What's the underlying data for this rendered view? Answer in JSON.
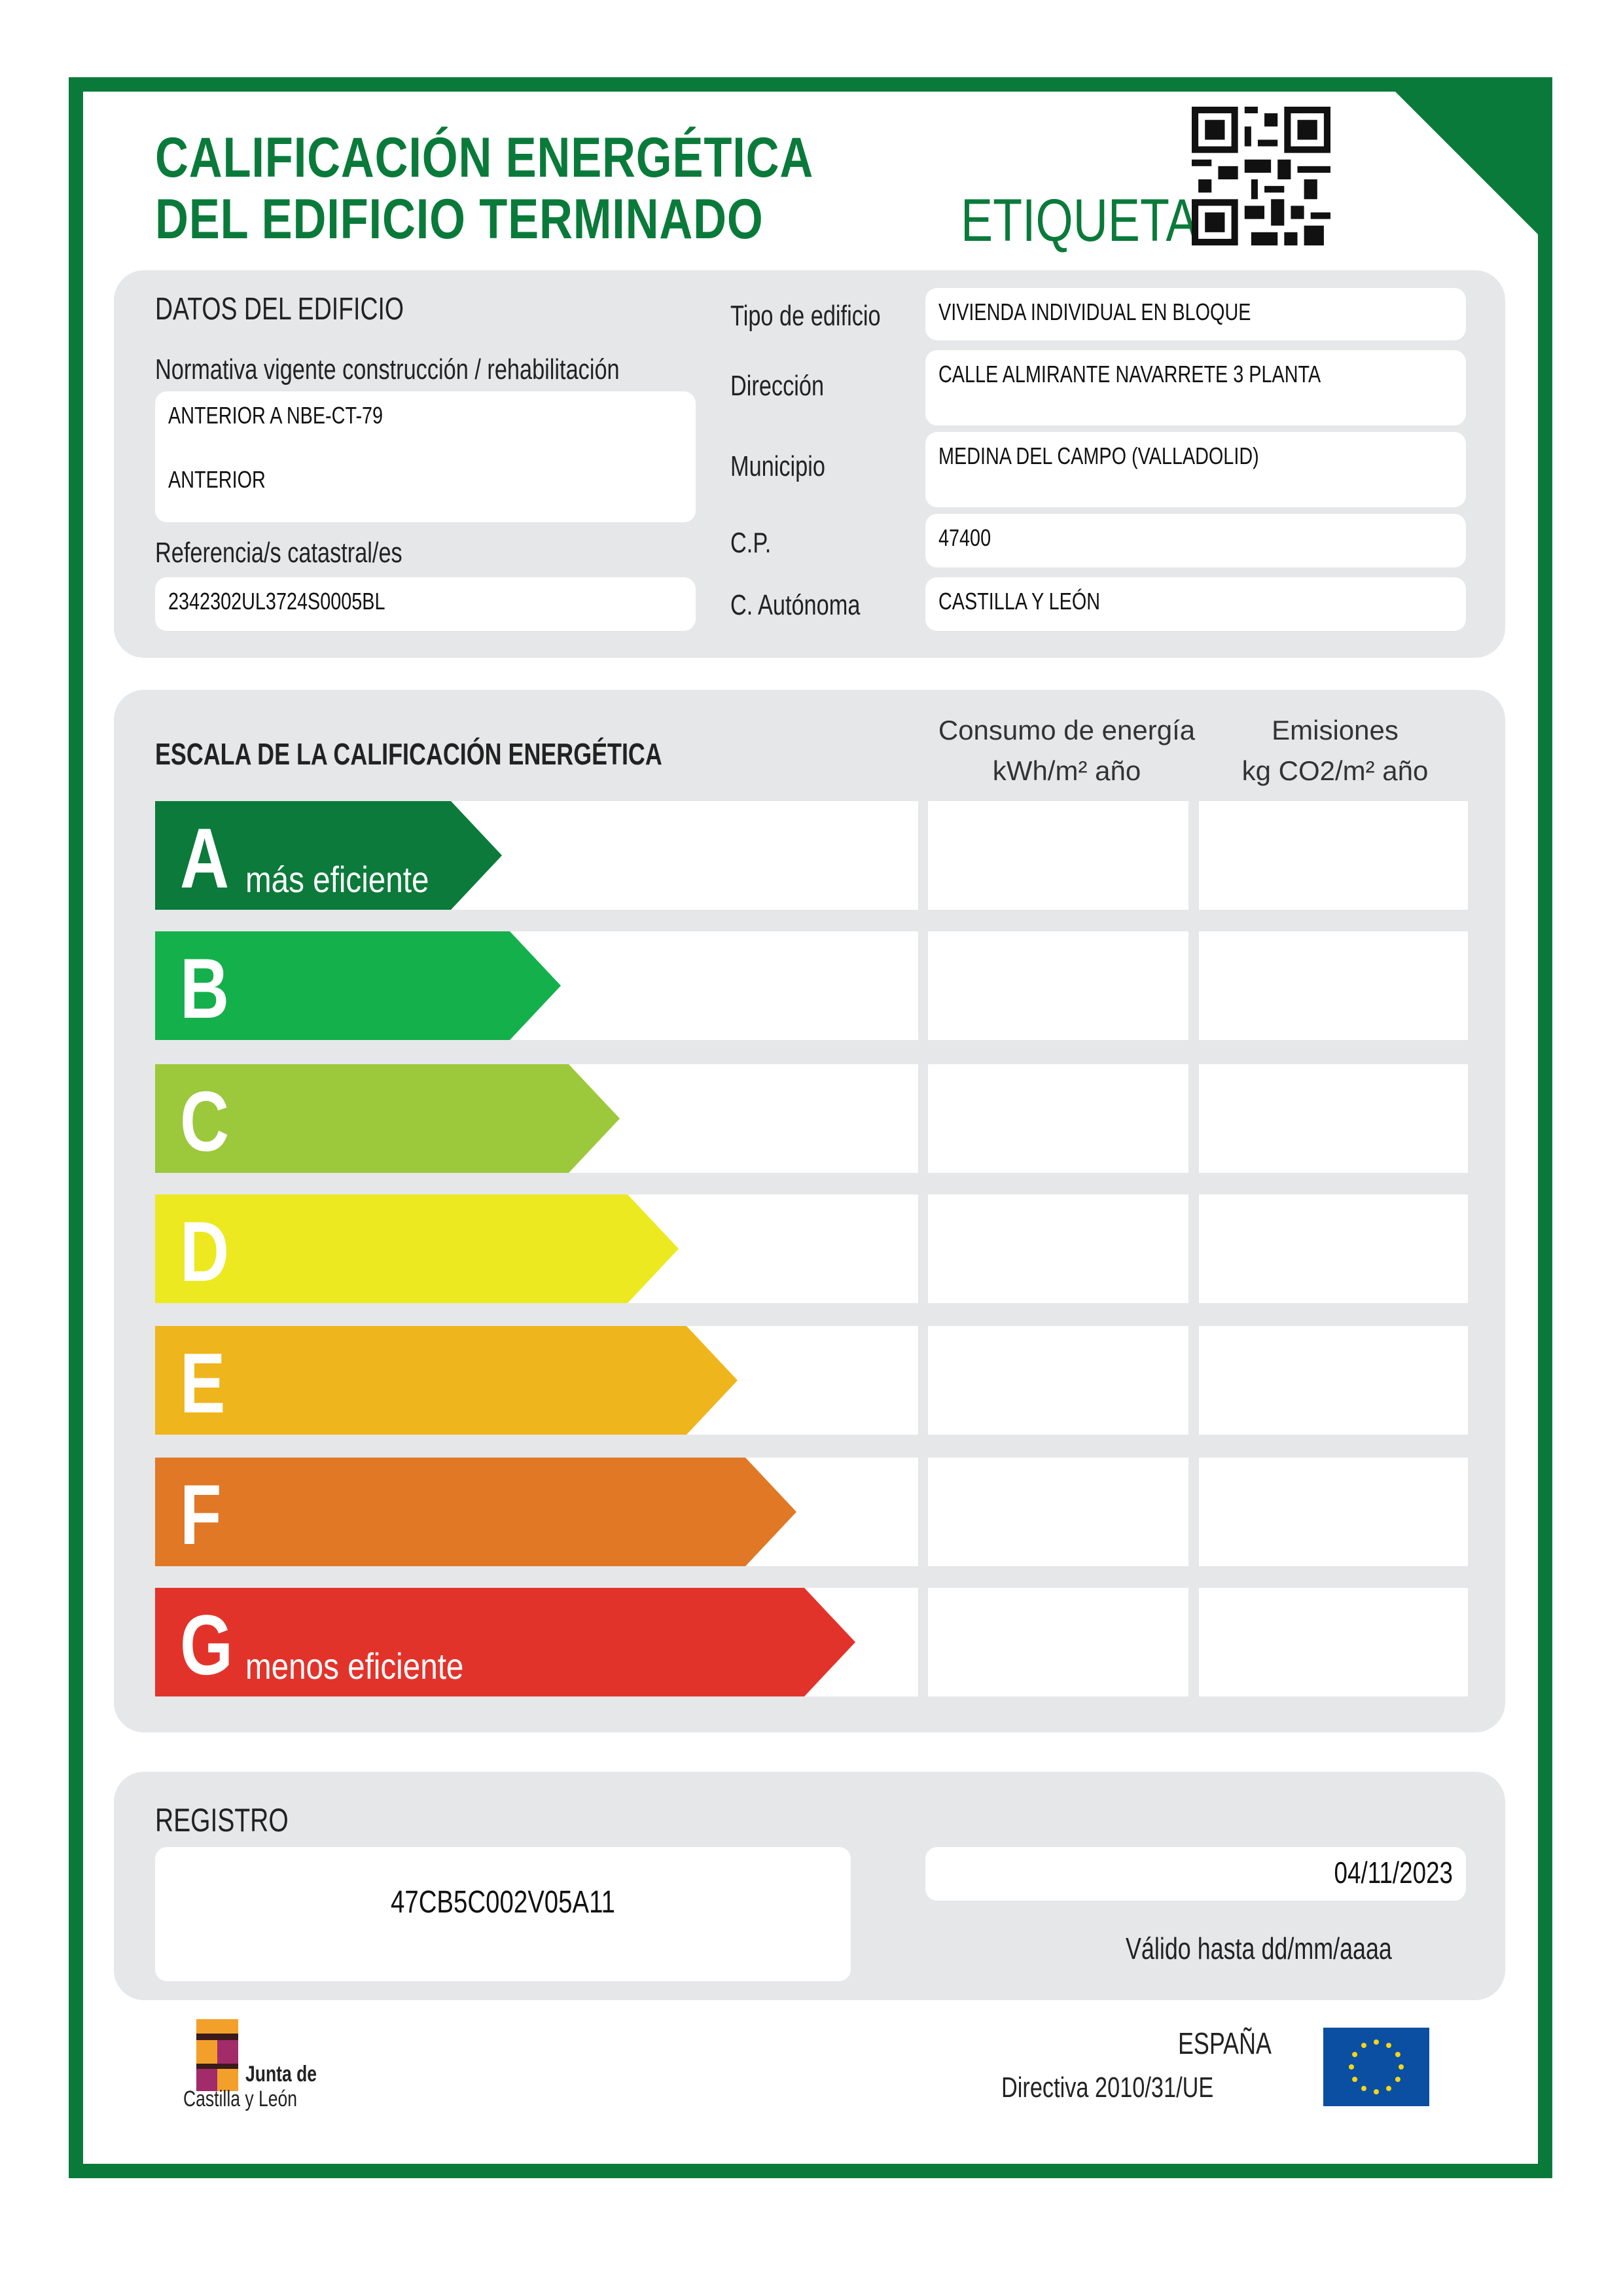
{
  "header": {
    "title_line1": "CALIFICACIÓN ENERGÉTICA",
    "title_line2": "DEL EDIFICIO TERMINADO",
    "etiqueta": "ETIQUETA",
    "qr_icon": "qr-code-icon"
  },
  "datos": {
    "section_title": "DATOS DEL EDIFICIO",
    "normativa_label": "Normativa vigente construcción / rehabilitación",
    "normativa_value1": "ANTERIOR A NBE-CT-79",
    "normativa_value2": "ANTERIOR",
    "referencia_label": "Referencia/s catastral/es",
    "referencia_value": "2342302UL3724S0005BL",
    "tipo_label": "Tipo de edificio",
    "tipo_value": "VIVIENDA INDIVIDUAL EN BLOQUE",
    "direccion_label": "Dirección",
    "direccion_value": "CALLE ALMIRANTE NAVARRETE 3 PLANTA",
    "municipio_label": "Municipio",
    "municipio_value": "MEDINA DEL CAMPO (VALLADOLID)",
    "cp_label": "C.P.",
    "cp_value": "47400",
    "ca_label": "C. Autónoma",
    "ca_value": "CASTILLA Y LEÓN"
  },
  "escala": {
    "section_title": "ESCALA DE LA CALIFICACIÓN ENERGÉTICA",
    "col1_line1": "Consumo de energía",
    "col1_line2": "kWh/m² año",
    "col2_line1": "Emisiones",
    "col2_line2": "kg CO2/m² año",
    "classes": [
      {
        "letter": "A",
        "sub": "más eficiente",
        "color": "#0b7a3a"
      },
      {
        "letter": "B",
        "sub": "",
        "color": "#14b04b"
      },
      {
        "letter": "C",
        "sub": "",
        "color": "#9cc83c"
      },
      {
        "letter": "D",
        "sub": "",
        "color": "#ece920"
      },
      {
        "letter": "E",
        "sub": "",
        "color": "#efb51c"
      },
      {
        "letter": "F",
        "sub": "",
        "color": "#e07826"
      },
      {
        "letter": "G",
        "sub": "menos eficiente",
        "color": "#e2332b"
      }
    ]
  },
  "registro": {
    "section_title": "REGISTRO",
    "number": "47CB5C002V05A11",
    "date": "04/11/2023",
    "valido": "Válido hasta dd/mm/aaaa"
  },
  "footer": {
    "logo_text_line1": "Junta de",
    "logo_text_line2": "Castilla y León",
    "country": "ESPAÑA",
    "directiva": "Directiva 2010/31/UE",
    "eu_flag_icon": "eu-flag-icon"
  }
}
